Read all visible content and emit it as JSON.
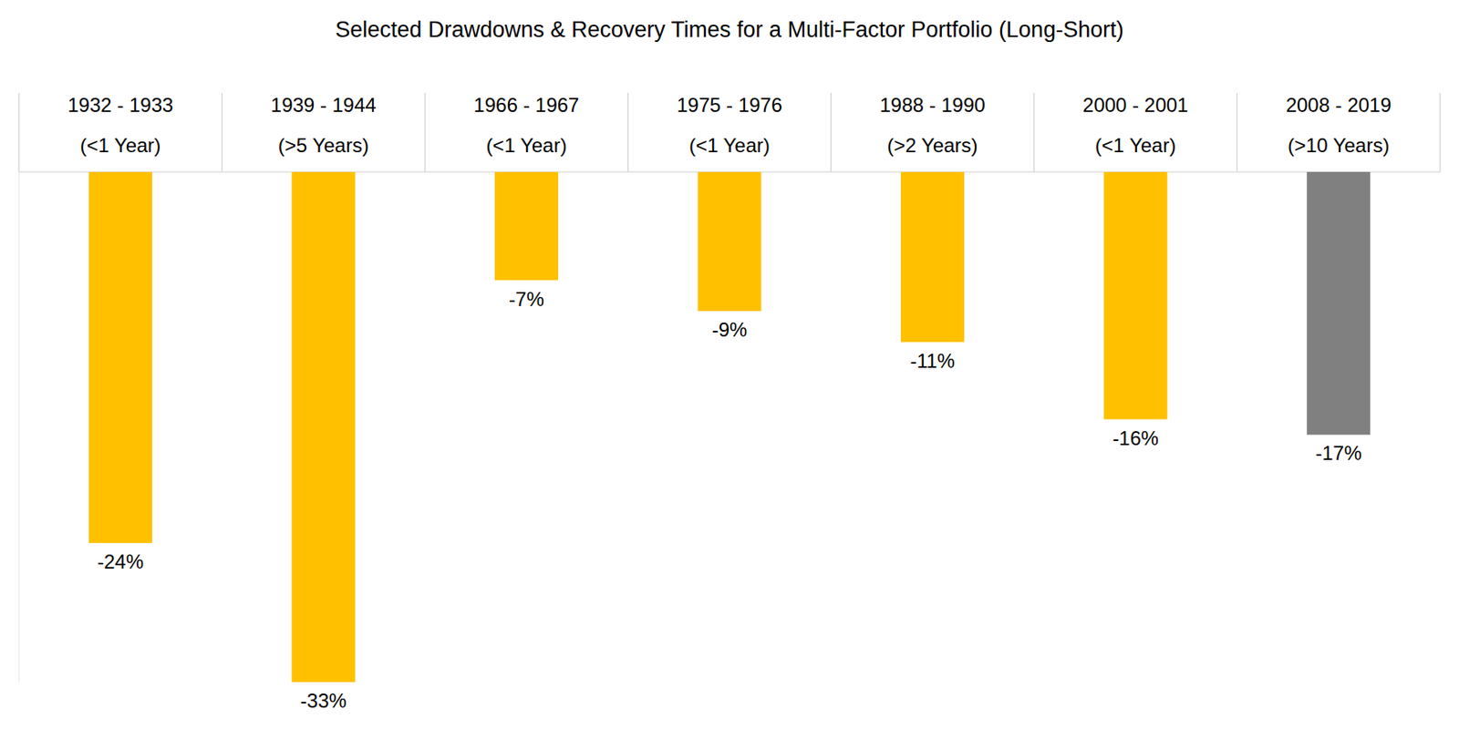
{
  "chart_data": {
    "type": "bar",
    "title": "Selected Drawdowns & Recovery Times for a Multi-Factor Portfolio (Long-Short)",
    "categories": [
      "1932 - 1933",
      "1939 - 1944",
      "1966 - 1967",
      "1975 - 1976",
      "1988 - 1990",
      "2000 - 2001",
      "2008 - 2019"
    ],
    "recovery_times": [
      "(<1 Year)",
      "(>5 Years)",
      "(<1 Year)",
      "(<1 Year)",
      "(>2 Years)",
      "(<1 Year)",
      "(>10 Years)"
    ],
    "values": [
      -24,
      -33,
      -7,
      -9,
      -11,
      -16,
      -17
    ],
    "value_labels": [
      "-24%",
      "-33%",
      "-7%",
      "-9%",
      "-11%",
      "-16%",
      "-17%"
    ],
    "colors": [
      "#ffc000",
      "#ffc000",
      "#ffc000",
      "#ffc000",
      "#ffc000",
      "#ffc000",
      "#808080"
    ],
    "ylim": [
      -33,
      0
    ],
    "yticks": [
      0
    ],
    "data_labels": true,
    "tick_labels": false,
    "grid": false
  }
}
